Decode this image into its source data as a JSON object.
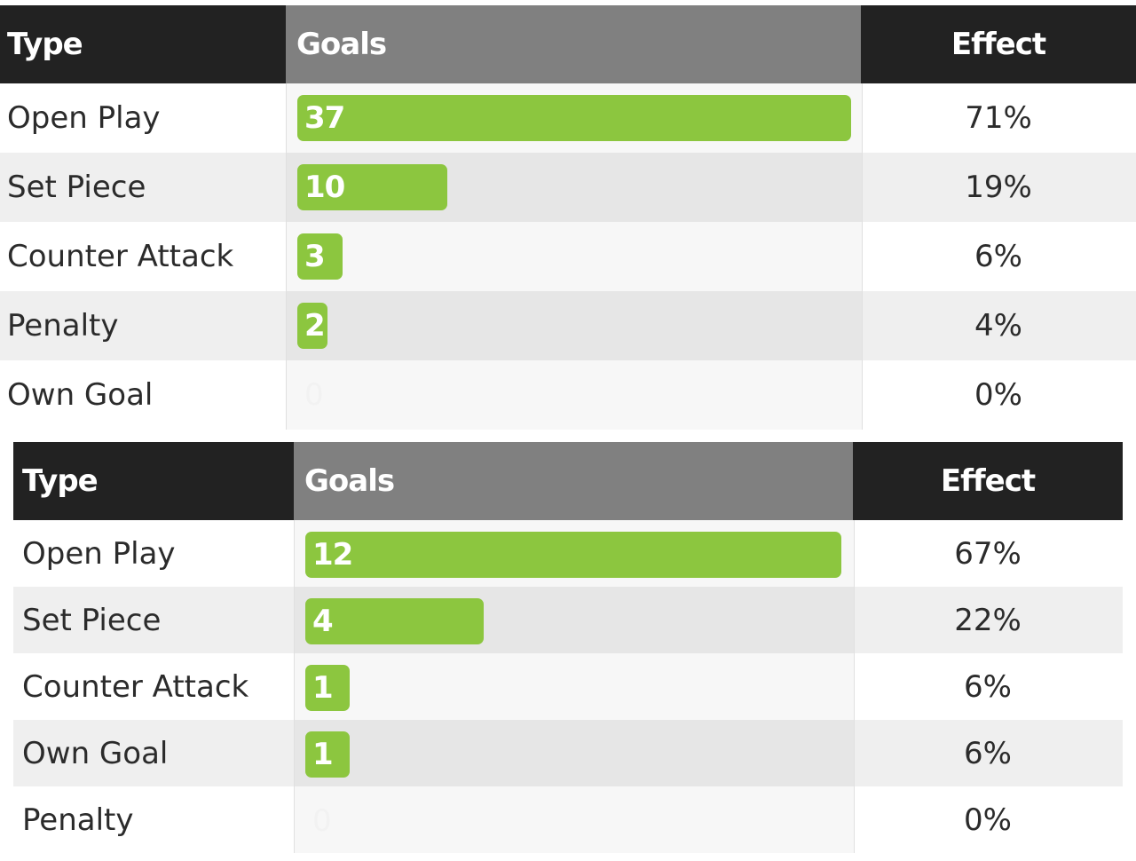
{
  "tables": [
    {
      "headers": {
        "type": "Type",
        "goals": "Goals",
        "effect": "Effect"
      },
      "rows": [
        {
          "type": "Open Play",
          "goals": "37",
          "effect": "71%"
        },
        {
          "type": "Set Piece",
          "goals": "10",
          "effect": "19%"
        },
        {
          "type": "Counter Attack",
          "goals": "3",
          "effect": "6%"
        },
        {
          "type": "Penalty",
          "goals": "2",
          "effect": "4%"
        },
        {
          "type": "Own Goal",
          "goals": "0",
          "effect": "0%"
        }
      ]
    },
    {
      "headers": {
        "type": "Type",
        "goals": "Goals",
        "effect": "Effect"
      },
      "rows": [
        {
          "type": "Open Play",
          "goals": "12",
          "effect": "67%"
        },
        {
          "type": "Set Piece",
          "goals": "4",
          "effect": "22%"
        },
        {
          "type": "Counter Attack",
          "goals": "1",
          "effect": "6%"
        },
        {
          "type": "Own Goal",
          "goals": "1",
          "effect": "6%"
        },
        {
          "type": "Penalty",
          "goals": "0",
          "effect": "0%"
        }
      ]
    }
  ],
  "colors": {
    "bar": "#8cc63f",
    "header_dark": "#222222",
    "header_goals": "#808080"
  },
  "chart_data": [
    {
      "type": "table",
      "categories": [
        "Open Play",
        "Set Piece",
        "Counter Attack",
        "Penalty",
        "Own Goal"
      ],
      "values": [
        37,
        10,
        3,
        2,
        0
      ],
      "effect": [
        "71%",
        "19%",
        "6%",
        "4%",
        "0%"
      ]
    },
    {
      "type": "table",
      "categories": [
        "Open Play",
        "Set Piece",
        "Counter Attack",
        "Own Goal",
        "Penalty"
      ],
      "values": [
        12,
        4,
        1,
        1,
        0
      ],
      "effect": [
        "67%",
        "22%",
        "6%",
        "6%",
        "0%"
      ]
    }
  ]
}
